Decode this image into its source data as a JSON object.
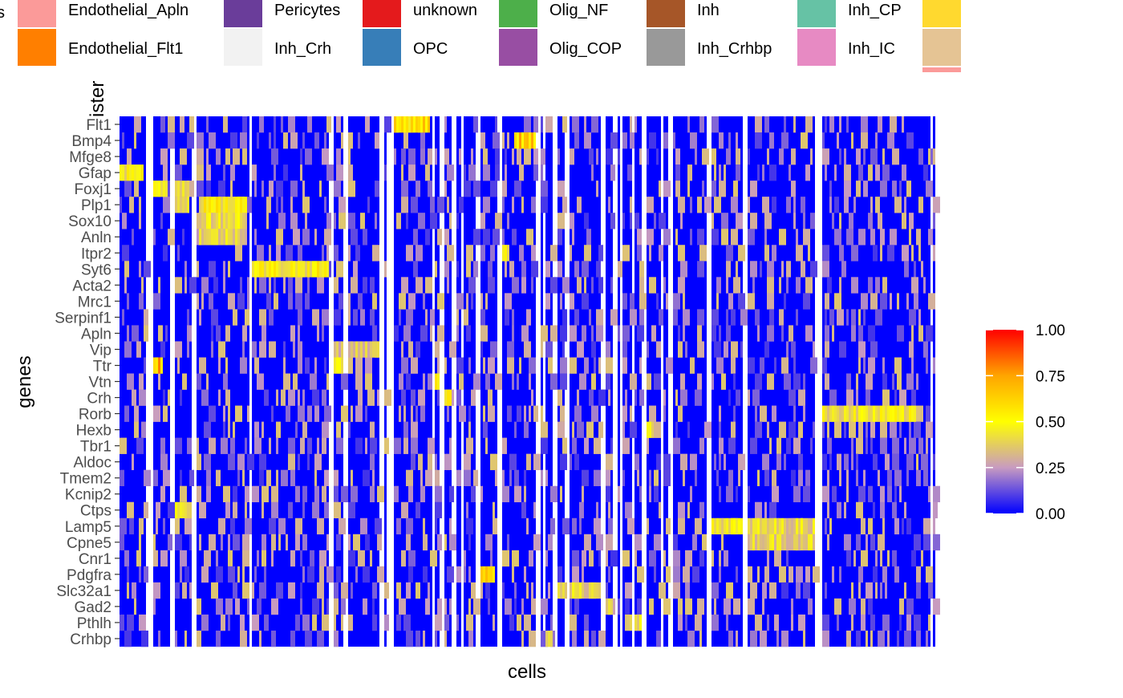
{
  "chart_data": {
    "type": "heatmap",
    "xlabel": "cells",
    "ylabel": "genes",
    "cluster_label_partial": "ister",
    "legend_cut_label": "s",
    "cluster_legend": [
      {
        "name": "Endothelial_Apln",
        "color": "#FB9A99"
      },
      {
        "name": "Endothelial_Flt1",
        "color": "#FF7F00"
      },
      {
        "name": "Pericytes",
        "color": "#6A3D9A"
      },
      {
        "name": "Inh_Crh",
        "color": "#F2F2F2"
      },
      {
        "name": "unknown",
        "color": "#E41A1C"
      },
      {
        "name": "OPC",
        "color": "#377EB8"
      },
      {
        "name": "Olig_NF",
        "color": "#4DAF4A"
      },
      {
        "name": "Olig_COP",
        "color": "#984EA3"
      },
      {
        "name": "Inh",
        "color": "#A65628"
      },
      {
        "name": "Inh_Crhbp",
        "color": "#999999"
      },
      {
        "name": "Inh_CP",
        "color": "#66C2A5"
      },
      {
        "name": "Inh_IC",
        "color": "#E78AC3"
      }
    ],
    "cluster_legend_partial_colors": [
      "#FFD92F",
      "#E5C494",
      "#FB9A99"
    ],
    "genes": [
      "Flt1",
      "Bmp4",
      "Mfge8",
      "Gfap",
      "Foxj1",
      "Plp1",
      "Sox10",
      "Anln",
      "Itpr2",
      "Syt6",
      "Acta2",
      "Mrc1",
      "Serpinf1",
      "Apln",
      "Vip",
      "Ttr",
      "Vtn",
      "Crh",
      "Rorb",
      "Hexb",
      "Tbr1",
      "Aldoc",
      "Tmem2",
      "Kcnip2",
      "Ctps",
      "Lamp5",
      "Cpne5",
      "Cnr1",
      "Pdgfra",
      "Slc32a1",
      "Gad2",
      "Pthlh",
      "Crhbp"
    ],
    "colorbar": {
      "ticks": [
        "1.00",
        "0.75",
        "0.50",
        "0.25",
        "0.00"
      ],
      "stops": [
        {
          "value": 0.0,
          "color": "#0000FF"
        },
        {
          "value": 0.25,
          "color": "#C89BC0"
        },
        {
          "value": 0.5,
          "color": "#FFFF00"
        },
        {
          "value": 0.75,
          "color": "#FFA500"
        },
        {
          "value": 1.0,
          "color": "#FF0000"
        }
      ]
    },
    "cluster_columns_cells": [
      {
        "from": 0,
        "to": 0.032
      },
      {
        "from": 0.041,
        "to": 0.062
      },
      {
        "from": 0.067,
        "to": 0.088
      },
      {
        "from": 0.093,
        "to": 0.158
      },
      {
        "from": 0.163,
        "to": 0.258
      },
      {
        "from": 0.264,
        "to": 0.274
      },
      {
        "from": 0.279,
        "to": 0.32
      },
      {
        "from": 0.325,
        "to": 0.328
      },
      {
        "from": 0.336,
        "to": 0.383
      },
      {
        "from": 0.387,
        "to": 0.393
      },
      {
        "from": 0.397,
        "to": 0.407
      },
      {
        "from": 0.412,
        "to": 0.418
      },
      {
        "from": 0.423,
        "to": 0.437
      },
      {
        "from": 0.442,
        "to": 0.464
      },
      {
        "from": 0.469,
        "to": 0.51
      },
      {
        "from": 0.515,
        "to": 0.518
      },
      {
        "from": 0.522,
        "to": 0.53
      },
      {
        "from": 0.536,
        "to": 0.546
      },
      {
        "from": 0.551,
        "to": 0.59
      },
      {
        "from": 0.595,
        "to": 0.605
      },
      {
        "from": 0.61,
        "to": 0.613
      },
      {
        "from": 0.617,
        "to": 0.627
      },
      {
        "from": 0.631,
        "to": 0.64
      },
      {
        "from": 0.645,
        "to": 0.663
      },
      {
        "from": 0.668,
        "to": 0.672
      },
      {
        "from": 0.677,
        "to": 0.72
      },
      {
        "from": 0.727,
        "to": 0.765
      },
      {
        "from": 0.77,
        "to": 0.853
      },
      {
        "from": 0.862,
        "to": 0.993
      },
      {
        "from": 0.998,
        "to": 1.0
      }
    ],
    "expression_blocks": [
      {
        "gene": "Flt1",
        "from": 0.332,
        "to": 0.38,
        "value": 0.65
      },
      {
        "gene": "Bmp4",
        "from": 0.485,
        "to": 0.51,
        "value": 0.7
      },
      {
        "gene": "Mfge8",
        "from": 0.993,
        "to": 1.0,
        "value": 0.45
      },
      {
        "gene": "Gfap",
        "from": 0.0,
        "to": 0.028,
        "value": 0.55
      },
      {
        "gene": "Foxj1",
        "from": 0.041,
        "to": 0.058,
        "value": 0.5
      },
      {
        "gene": "Foxj1",
        "from": 0.07,
        "to": 0.085,
        "value": 0.5
      },
      {
        "gene": "Plp1",
        "from": 0.07,
        "to": 0.085,
        "value": 0.5
      },
      {
        "gene": "Plp1",
        "from": 0.1,
        "to": 0.155,
        "value": 0.55
      },
      {
        "gene": "Sox10",
        "from": 0.1,
        "to": 0.155,
        "value": 0.5
      },
      {
        "gene": "Anln",
        "from": 0.1,
        "to": 0.155,
        "value": 0.45
      },
      {
        "gene": "Itpr2",
        "from": 0.465,
        "to": 0.475,
        "value": 0.55
      },
      {
        "gene": "Syt6",
        "from": 0.163,
        "to": 0.258,
        "value": 0.55
      },
      {
        "gene": "Vip",
        "from": 0.262,
        "to": 0.32,
        "value": 0.4
      },
      {
        "gene": "Ttr",
        "from": 0.043,
        "to": 0.052,
        "value": 0.75
      },
      {
        "gene": "Ttr",
        "from": 0.264,
        "to": 0.274,
        "value": 0.6
      },
      {
        "gene": "Vtn",
        "from": 0.385,
        "to": 0.393,
        "value": 0.6
      },
      {
        "gene": "Crh",
        "from": 0.397,
        "to": 0.407,
        "value": 0.6
      },
      {
        "gene": "Rorb",
        "from": 0.862,
        "to": 0.975,
        "value": 0.5
      },
      {
        "gene": "Hexb",
        "from": 0.648,
        "to": 0.652,
        "value": 0.55
      },
      {
        "gene": "Ctps",
        "from": 0.067,
        "to": 0.088,
        "value": 0.55
      },
      {
        "gene": "Lamp5",
        "from": 0.728,
        "to": 0.765,
        "value": 0.5
      },
      {
        "gene": "Lamp5",
        "from": 0.77,
        "to": 0.853,
        "value": 0.45
      },
      {
        "gene": "Cpne5",
        "from": 0.77,
        "to": 0.853,
        "value": 0.45
      },
      {
        "gene": "Pdgfra",
        "from": 0.441,
        "to": 0.459,
        "value": 0.65
      },
      {
        "gene": "Slc32a1",
        "from": 0.536,
        "to": 0.59,
        "value": 0.45
      },
      {
        "gene": "Gad2",
        "from": 0.595,
        "to": 0.605,
        "value": 0.5
      },
      {
        "gene": "Pthlh",
        "from": 0.622,
        "to": 0.64,
        "value": 0.5
      },
      {
        "gene": "Crhbp",
        "from": 0.52,
        "to": 0.535,
        "value": 0.4
      }
    ]
  }
}
